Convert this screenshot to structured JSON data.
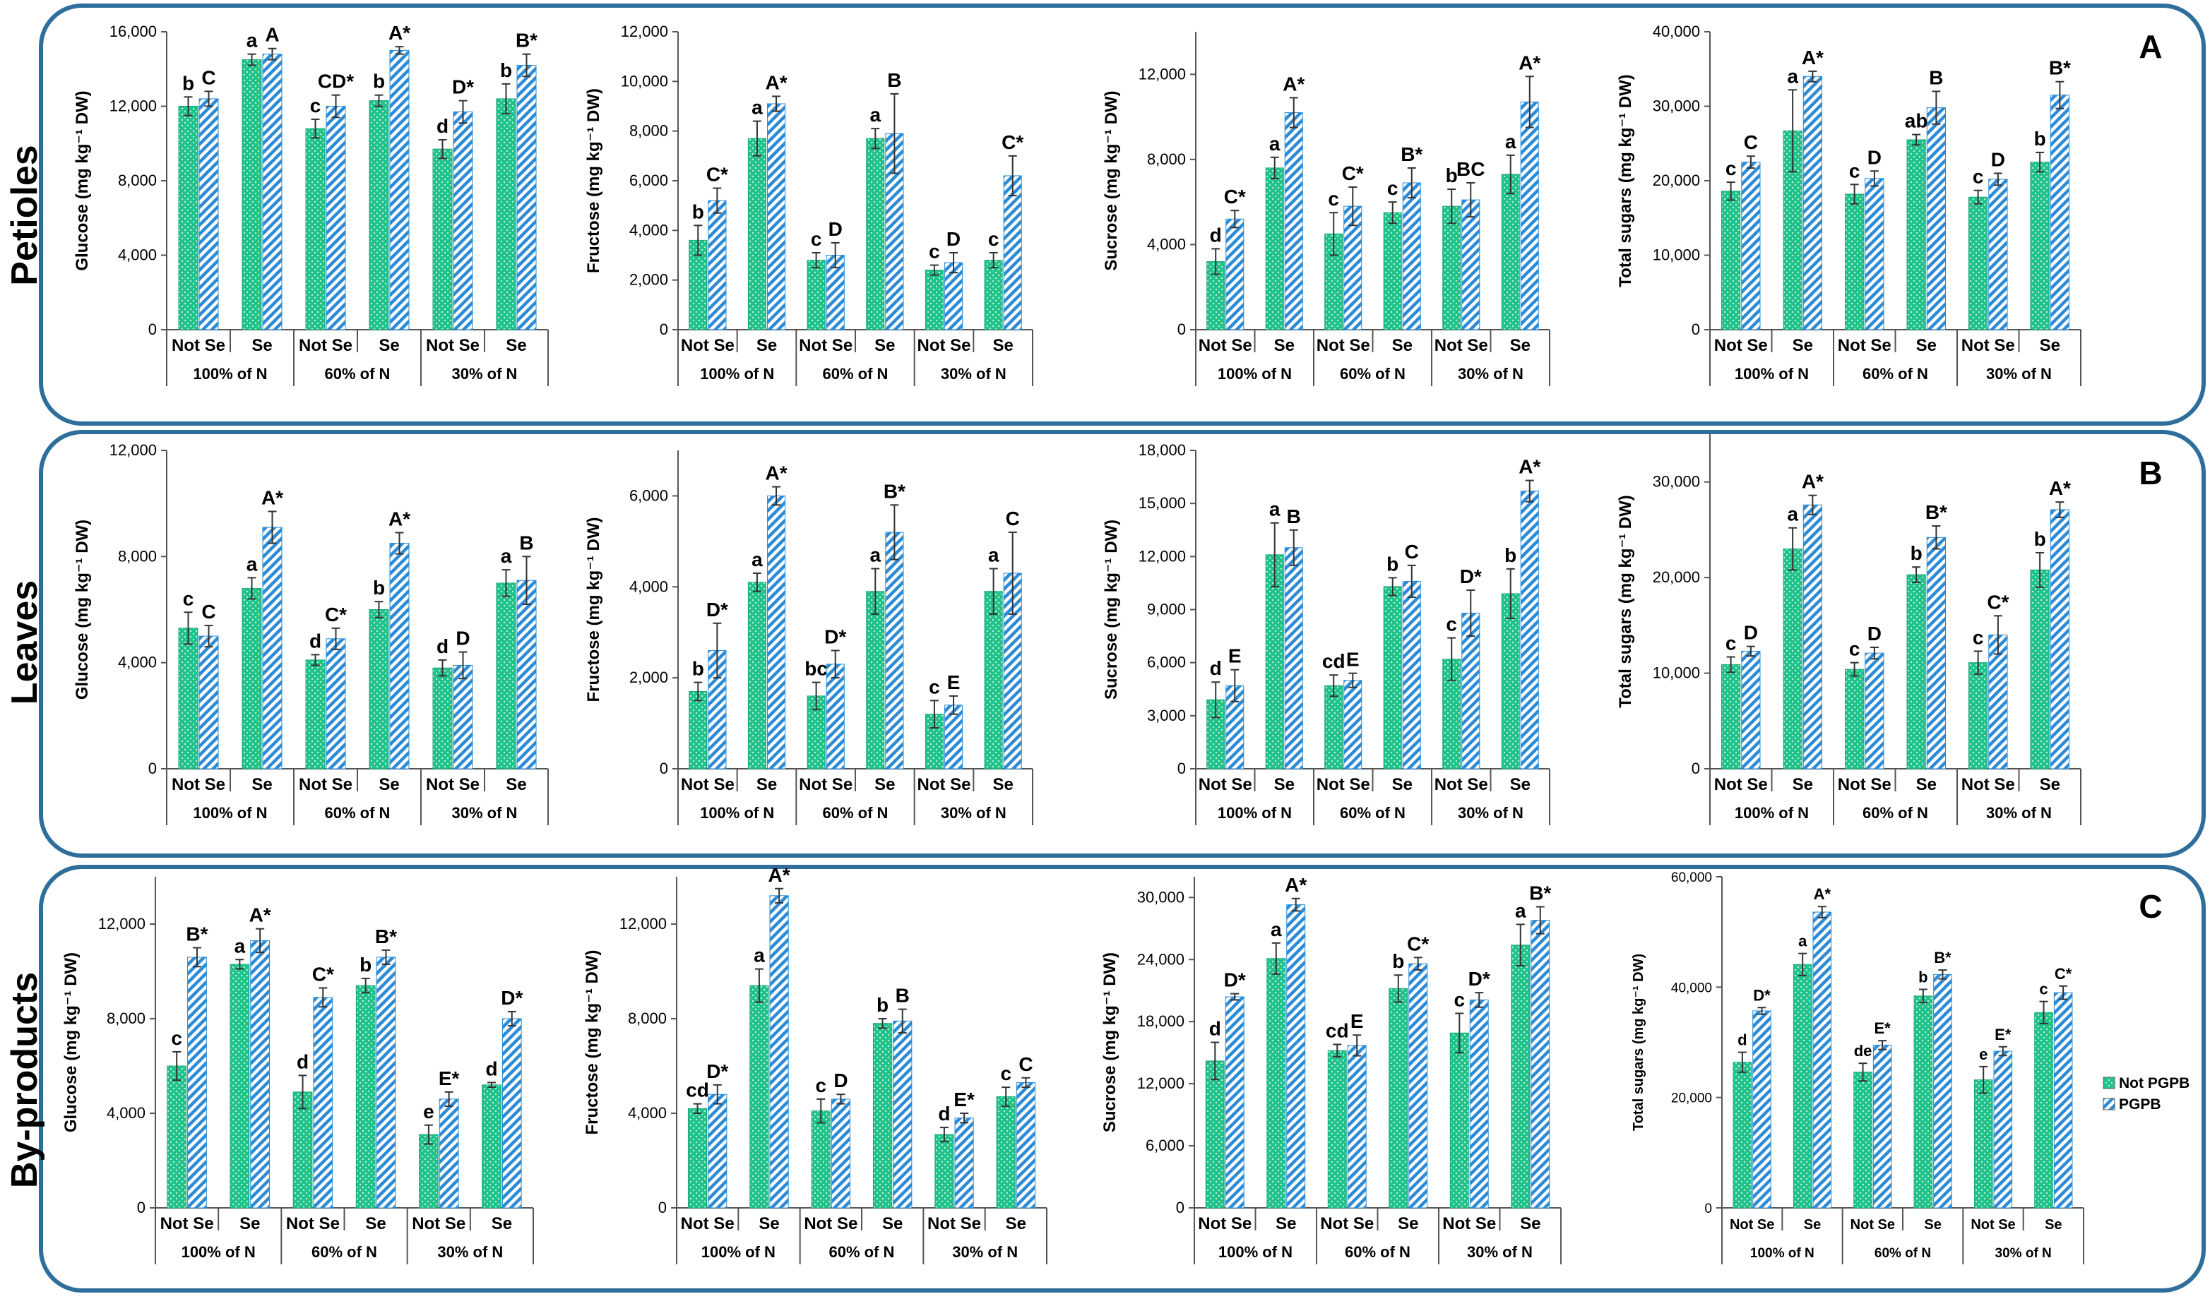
{
  "colors": {
    "not_pgpb": "#1fc28a",
    "pgpb": "#2b8bd6",
    "frame": "#2d6e9c",
    "axis": "#555555",
    "text": "#000000"
  },
  "legend": {
    "not_pgpb": "Not PGPB",
    "pgpb": "PGPB"
  },
  "categories": [
    "Not Se",
    "Se",
    "Not Se",
    "Se",
    "Not Se",
    "Se"
  ],
  "groups": [
    "100% of N",
    "60% of N",
    "30% of N"
  ],
  "panels": [
    {
      "letter": "A",
      "organ": "Petioles"
    },
    {
      "letter": "B",
      "organ": "Leaves"
    },
    {
      "letter": "C",
      "organ": "By-products"
    }
  ],
  "chart_data": [
    {
      "type": "bar",
      "panel": "A",
      "ylabel": "Glucose (mg kg⁻¹ DW)",
      "ylim": [
        0,
        16000
      ],
      "yticks": [
        0,
        4000,
        8000,
        12000,
        16000
      ],
      "tick_labels": [
        "0",
        "4,000",
        "8,000",
        "12,000",
        "16,000"
      ],
      "series": [
        {
          "name": "Not PGPB",
          "values": [
            12000,
            14500,
            10800,
            12300,
            9700,
            12400
          ],
          "errors": [
            500,
            300,
            500,
            300,
            500,
            800
          ],
          "letters": [
            "b",
            "a",
            "c",
            "b",
            "d",
            "b"
          ]
        },
        {
          "name": "PGPB",
          "values": [
            12400,
            14800,
            12000,
            15000,
            11700,
            14200
          ],
          "errors": [
            400,
            300,
            600,
            200,
            600,
            600
          ],
          "letters": [
            "C",
            "A",
            "CD*",
            "A*",
            "D*",
            "B*"
          ]
        }
      ]
    },
    {
      "type": "bar",
      "panel": "A",
      "ylabel": "Fructose (mg kg⁻¹ DW)",
      "ylim": [
        0,
        12000
      ],
      "yticks": [
        0,
        2000,
        4000,
        6000,
        8000,
        10000,
        12000
      ],
      "tick_labels": [
        "0",
        "2,000",
        "4,000",
        "6,000",
        "8,000",
        "10,000",
        "12,000"
      ],
      "series": [
        {
          "name": "Not PGPB",
          "values": [
            3600,
            7700,
            2800,
            7700,
            2400,
            2800
          ],
          "errors": [
            600,
            700,
            300,
            400,
            200,
            300
          ],
          "letters": [
            "b",
            "a",
            "c",
            "a",
            "c",
            "c"
          ]
        },
        {
          "name": "PGPB",
          "values": [
            5200,
            9100,
            3000,
            7900,
            2700,
            6200
          ],
          "errors": [
            500,
            300,
            500,
            1600,
            400,
            800
          ],
          "letters": [
            "C*",
            "A*",
            "D",
            "B",
            "D",
            "C*"
          ]
        }
      ]
    },
    {
      "type": "bar",
      "panel": "A",
      "ylabel": "Sucrose (mg kg⁻¹ DW)",
      "ylim": [
        0,
        14000
      ],
      "yticks": [
        0,
        4000,
        8000,
        12000
      ],
      "tick_labels": [
        "0",
        "4,000",
        "8,000",
        "12,000"
      ],
      "series": [
        {
          "name": "Not PGPB",
          "values": [
            3200,
            7600,
            4500,
            5500,
            5800,
            7300
          ],
          "errors": [
            600,
            500,
            1000,
            500,
            800,
            900
          ],
          "letters": [
            "d",
            "a",
            "c",
            "c",
            "b",
            "a"
          ]
        },
        {
          "name": "PGPB",
          "values": [
            5200,
            10200,
            5800,
            6900,
            6100,
            10700
          ],
          "errors": [
            400,
            700,
            900,
            700,
            800,
            1200
          ],
          "letters": [
            "C*",
            "A*",
            "C*",
            "B*",
            "BC",
            "A*"
          ]
        }
      ]
    },
    {
      "type": "bar",
      "panel": "A",
      "ylabel": "Total sugars (mg kg⁻¹ DW)",
      "ylim": [
        0,
        40000
      ],
      "yticks": [
        0,
        10000,
        20000,
        30000,
        40000
      ],
      "tick_labels": [
        "0",
        "10,000",
        "20,000",
        "30,000",
        "40,000"
      ],
      "series": [
        {
          "name": "Not PGPB",
          "values": [
            18600,
            26700,
            18200,
            25500,
            17800,
            22500
          ],
          "errors": [
            1200,
            5500,
            1300,
            700,
            900,
            1300
          ],
          "letters": [
            "c",
            "a",
            "c",
            "ab",
            "c",
            "b"
          ]
        },
        {
          "name": "PGPB",
          "values": [
            22500,
            34000,
            20300,
            29800,
            20200,
            31500
          ],
          "errors": [
            800,
            700,
            1000,
            2200,
            800,
            1800
          ],
          "letters": [
            "C",
            "A*",
            "D",
            "B",
            "D",
            "B*"
          ]
        }
      ]
    },
    {
      "type": "bar",
      "panel": "B",
      "ylabel": "Glucose (mg kg⁻¹ DW)",
      "ylim": [
        0,
        12000
      ],
      "yticks": [
        0,
        4000,
        8000,
        12000
      ],
      "tick_labels": [
        "0",
        "4,000",
        "8,000",
        "12,000"
      ],
      "series": [
        {
          "name": "Not PGPB",
          "values": [
            5300,
            6800,
            4100,
            6000,
            3800,
            7000
          ],
          "errors": [
            600,
            400,
            200,
            300,
            300,
            500
          ],
          "letters": [
            "c",
            "a",
            "d",
            "b",
            "d",
            "a"
          ]
        },
        {
          "name": "PGPB",
          "values": [
            5000,
            9100,
            4900,
            8500,
            3900,
            7100
          ],
          "errors": [
            400,
            600,
            400,
            400,
            500,
            900
          ],
          "letters": [
            "C",
            "A*",
            "C*",
            "A*",
            "D",
            "B"
          ]
        }
      ]
    },
    {
      "type": "bar",
      "panel": "B",
      "ylabel": "Fructose (mg kg⁻¹ DW)",
      "ylim": [
        0,
        7000
      ],
      "yticks": [
        0,
        2000,
        4000,
        6000
      ],
      "tick_labels": [
        "0",
        "2,000",
        "4,000",
        "6,000"
      ],
      "series": [
        {
          "name": "Not PGPB",
          "values": [
            1700,
            4100,
            1600,
            3900,
            1200,
            3900
          ],
          "errors": [
            200,
            200,
            300,
            500,
            300,
            500
          ],
          "letters": [
            "b",
            "a",
            "bc",
            "a",
            "c",
            "a"
          ]
        },
        {
          "name": "PGPB",
          "values": [
            2600,
            6000,
            2300,
            5200,
            1400,
            4300
          ],
          "errors": [
            600,
            200,
            300,
            600,
            200,
            900
          ],
          "letters": [
            "D*",
            "A*",
            "D*",
            "B*",
            "E",
            "C"
          ]
        }
      ]
    },
    {
      "type": "bar",
      "panel": "B",
      "ylabel": "Sucrose (mg kg⁻¹ DW)",
      "ylim": [
        0,
        18000
      ],
      "yticks": [
        0,
        3000,
        6000,
        9000,
        12000,
        15000,
        18000
      ],
      "tick_labels": [
        "0",
        "3,000",
        "6,000",
        "9,000",
        "12,000",
        "15,000",
        "18,000"
      ],
      "series": [
        {
          "name": "Not PGPB",
          "values": [
            3900,
            12100,
            4700,
            10300,
            6200,
            9900
          ],
          "errors": [
            1000,
            1800,
            600,
            500,
            1200,
            1400
          ],
          "letters": [
            "d",
            "a",
            "cd",
            "b",
            "c",
            "b"
          ]
        },
        {
          "name": "PGPB",
          "values": [
            4700,
            12500,
            5000,
            10600,
            8800,
            15700
          ],
          "errors": [
            900,
            1000,
            400,
            900,
            1300,
            600
          ],
          "letters": [
            "E",
            "B",
            "E",
            "C",
            "D*",
            "A*"
          ]
        }
      ]
    },
    {
      "type": "bar",
      "panel": "B",
      "ylabel": "Total sugars (mg kg⁻¹ DW)",
      "ylim": [
        0,
        35000
      ],
      "yticks": [
        0,
        10000,
        20000,
        30000
      ],
      "tick_labels": [
        "0",
        "10,000",
        "20,000",
        "30,000"
      ],
      "series": [
        {
          "name": "Not PGPB",
          "values": [
            10900,
            23000,
            10400,
            20300,
            11100,
            20800
          ],
          "errors": [
            800,
            2200,
            700,
            800,
            1200,
            1800
          ],
          "letters": [
            "c",
            "a",
            "c",
            "b",
            "c",
            "b"
          ]
        },
        {
          "name": "PGPB",
          "values": [
            12300,
            27600,
            12100,
            24200,
            14000,
            27100
          ],
          "errors": [
            500,
            1000,
            600,
            1200,
            2000,
            800
          ],
          "letters": [
            "D",
            "A*",
            "D",
            "B*",
            "C*",
            "A*"
          ]
        }
      ]
    },
    {
      "type": "bar",
      "panel": "C",
      "ylabel": "Glucose (mg kg⁻¹ DW)",
      "ylim": [
        0,
        14000
      ],
      "yticks": [
        0,
        4000,
        8000,
        12000
      ],
      "tick_labels": [
        "0",
        "4,000",
        "8,000",
        "12,000"
      ],
      "series": [
        {
          "name": "Not PGPB",
          "values": [
            6000,
            10300,
            4900,
            9400,
            3100,
            5200
          ],
          "errors": [
            600,
            200,
            700,
            300,
            400,
            100
          ],
          "letters": [
            "c",
            "a",
            "d",
            "b",
            "e",
            "d"
          ]
        },
        {
          "name": "PGPB",
          "values": [
            10600,
            11300,
            8900,
            10600,
            4600,
            8000
          ],
          "errors": [
            400,
            500,
            400,
            300,
            300,
            300
          ],
          "letters": [
            "B*",
            "A*",
            "C*",
            "B*",
            "E*",
            "D*"
          ]
        }
      ]
    },
    {
      "type": "bar",
      "panel": "C",
      "ylabel": "Fructose (mg kg⁻¹ DW)",
      "ylim": [
        0,
        14000
      ],
      "yticks": [
        0,
        4000,
        8000,
        12000
      ],
      "tick_labels": [
        "0",
        "4,000",
        "8,000",
        "12,000"
      ],
      "series": [
        {
          "name": "Not PGPB",
          "values": [
            4200,
            9400,
            4100,
            7800,
            3100,
            4700
          ],
          "errors": [
            200,
            700,
            500,
            200,
            300,
            400
          ],
          "letters": [
            "cd",
            "a",
            "c",
            "b",
            "d",
            "c"
          ]
        },
        {
          "name": "PGPB",
          "values": [
            4800,
            13200,
            4600,
            7900,
            3800,
            5300
          ],
          "errors": [
            400,
            300,
            200,
            500,
            200,
            200
          ],
          "letters": [
            "D*",
            "A*",
            "D",
            "B",
            "E*",
            "C"
          ]
        }
      ]
    },
    {
      "type": "bar",
      "panel": "C",
      "ylabel": "Sucrose (mg kg⁻¹ DW)",
      "ylim": [
        0,
        32000
      ],
      "yticks": [
        0,
        6000,
        12000,
        18000,
        24000,
        30000
      ],
      "tick_labels": [
        "0",
        "6,000",
        "12,000",
        "18,000",
        "24,000",
        "30,000"
      ],
      "series": [
        {
          "name": "Not PGPB",
          "values": [
            14200,
            24100,
            15200,
            21200,
            16900,
            25400
          ],
          "errors": [
            1800,
            1500,
            600,
            1300,
            1900,
            2000
          ],
          "letters": [
            "d",
            "a",
            "cd",
            "b",
            "c",
            "a"
          ]
        },
        {
          "name": "PGPB",
          "values": [
            20400,
            29300,
            15700,
            23600,
            20100,
            27800
          ],
          "errors": [
            300,
            600,
            1000,
            600,
            700,
            1300
          ],
          "letters": [
            "D*",
            "A*",
            "E",
            "C*",
            "D*",
            "B*"
          ]
        }
      ]
    },
    {
      "type": "bar",
      "panel": "C",
      "ylabel": "Total sugars (mg kg⁻¹ DW)",
      "ylim": [
        0,
        60000
      ],
      "yticks": [
        0,
        20000,
        40000,
        60000
      ],
      "tick_labels": [
        "0",
        "20,000",
        "40,000",
        "60,000"
      ],
      "series": [
        {
          "name": "Not PGPB",
          "values": [
            26400,
            44100,
            24600,
            38400,
            23200,
            35400
          ],
          "errors": [
            1800,
            2000,
            1600,
            1200,
            2400,
            2000
          ],
          "letters": [
            "d",
            "a",
            "de",
            "b",
            "e",
            "c"
          ]
        },
        {
          "name": "PGPB",
          "values": [
            35700,
            53600,
            29500,
            42300,
            28400,
            39000
          ],
          "errors": [
            600,
            1000,
            800,
            800,
            800,
            1200
          ],
          "letters": [
            "D*",
            "A*",
            "E*",
            "B*",
            "E*",
            "C*"
          ]
        }
      ]
    }
  ]
}
